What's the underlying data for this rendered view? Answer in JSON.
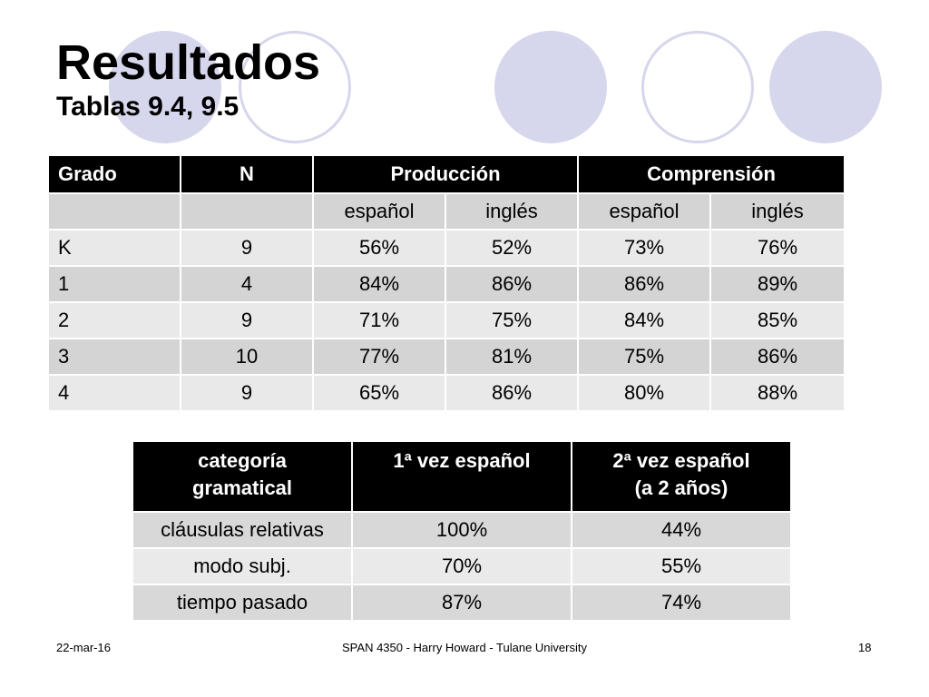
{
  "title": "Resultados",
  "subtitle": "Tablas 9.4, 9.5",
  "table1": {
    "headers": [
      "Grado",
      "N",
      "Producción",
      "Comprensión"
    ],
    "subheaders": [
      "",
      "",
      "español",
      "inglés",
      "español",
      "inglés"
    ],
    "rows": [
      [
        "K",
        "9",
        "56%",
        "52%",
        "73%",
        "76%"
      ],
      [
        "1",
        "4",
        "84%",
        "86%",
        "86%",
        "89%"
      ],
      [
        "2",
        "9",
        "71%",
        "75%",
        "84%",
        "85%"
      ],
      [
        "3",
        "10",
        "77%",
        "81%",
        "75%",
        "86%"
      ],
      [
        "4",
        "9",
        "65%",
        "86%",
        "80%",
        "88%"
      ]
    ]
  },
  "table2": {
    "headers": [
      [
        "categoría",
        "gramatical"
      ],
      [
        "1ª vez español",
        ""
      ],
      [
        "2ª vez español",
        "(a 2 años)"
      ]
    ],
    "rows": [
      [
        "cláusulas relativas",
        "100%",
        "44%"
      ],
      [
        "modo subj.",
        "70%",
        "55%"
      ],
      [
        "tiempo pasado",
        "87%",
        "74%"
      ]
    ]
  },
  "footer": {
    "date": "22-mar-16",
    "center": "SPAN 4350 - Harry Howard - Tulane University",
    "page": "18"
  },
  "colors": {
    "circle": "#d6d6ec",
    "header_bg": "#000000",
    "row_light": "#e9e9e9",
    "row_dark": "#d4d4d4"
  }
}
